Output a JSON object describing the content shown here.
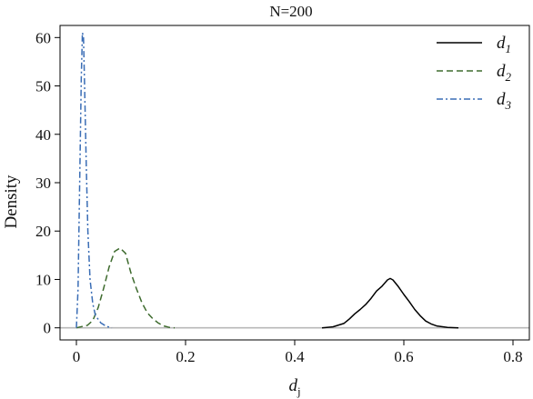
{
  "chart_data": {
    "type": "line",
    "title": "N=200",
    "xlabel": {
      "base": "d",
      "sub": "j"
    },
    "ylabel": "Density",
    "xlim": [
      -0.03,
      0.83
    ],
    "ylim": [
      -2.5,
      62.5
    ],
    "xticks": [
      0,
      0.2,
      0.4,
      0.6,
      0.8
    ],
    "xtick_labels": [
      "0",
      "0.2",
      "0.4",
      "0.6",
      "0.8"
    ],
    "yticks": [
      0,
      10,
      20,
      30,
      40,
      50,
      60
    ],
    "ytick_labels": [
      "0",
      "10",
      "20",
      "30",
      "40",
      "50",
      "60"
    ],
    "grid": false,
    "legend_position": "top-right",
    "baseline": {
      "y": 0,
      "color": "#b8b8b8"
    },
    "series": [
      {
        "name": "d",
        "sub": "1",
        "color": "#000000",
        "dash": "solid",
        "x": [
          0.45,
          0.47,
          0.49,
          0.5,
          0.51,
          0.52,
          0.53,
          0.54,
          0.55,
          0.56,
          0.57,
          0.575,
          0.58,
          0.59,
          0.6,
          0.61,
          0.62,
          0.63,
          0.64,
          0.65,
          0.66,
          0.68,
          0.7
        ],
        "y": [
          0,
          0.2,
          0.9,
          1.8,
          2.9,
          3.8,
          4.8,
          6.1,
          7.6,
          8.6,
          9.9,
          10.2,
          9.9,
          8.5,
          6.9,
          5.4,
          3.8,
          2.5,
          1.4,
          0.8,
          0.4,
          0.1,
          0
        ]
      },
      {
        "name": "d",
        "sub": "2",
        "color": "#3e6b2e",
        "dash": "dashed",
        "x": [
          0,
          0.02,
          0.03,
          0.04,
          0.05,
          0.06,
          0.07,
          0.08,
          0.09,
          0.1,
          0.11,
          0.12,
          0.13,
          0.14,
          0.15,
          0.16,
          0.17,
          0.18
        ],
        "y": [
          0,
          0.5,
          1.5,
          4.2,
          8.2,
          12.6,
          15.8,
          16.5,
          15.4,
          11.3,
          8.1,
          5.2,
          3.1,
          1.9,
          1,
          0.4,
          0.1,
          0
        ]
      },
      {
        "name": "d",
        "sub": "3",
        "color": "#3a6db5",
        "dash": "dashdot",
        "x": [
          0,
          0.003,
          0.006,
          0.009,
          0.011,
          0.013,
          0.015,
          0.018,
          0.021,
          0.025,
          0.03,
          0.035,
          0.045,
          0.055,
          0.065
        ],
        "y": [
          0,
          8,
          30,
          52,
          61,
          60,
          50,
          34,
          20,
          10,
          5,
          2.5,
          1,
          0.3,
          0
        ]
      }
    ]
  }
}
